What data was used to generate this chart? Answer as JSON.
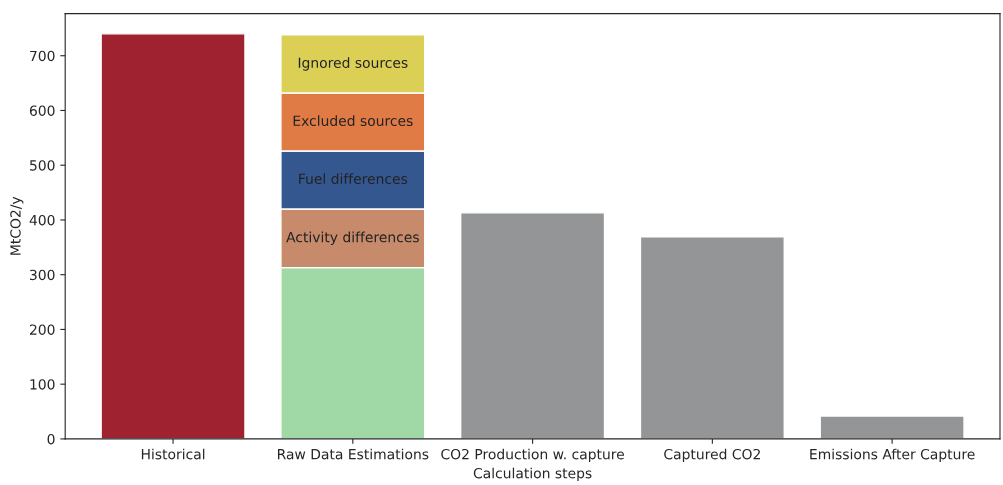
{
  "chart_data": {
    "type": "bar",
    "stacked": true,
    "xlabel": "Calculation steps",
    "ylabel": "MtCO2/y",
    "categories": [
      "Historical",
      "Raw Data Estimations",
      "CO2 Production w. capture",
      "Captured CO2",
      "Emissions After Capture"
    ],
    "series": [
      {
        "colors": [
          "#9e2230",
          "#a0d9a6",
          "#949596",
          "#949596",
          "#949596"
        ],
        "values": [
          740,
          313,
          413,
          369,
          42
        ]
      },
      {
        "name": "Activity differences",
        "color": "#c78a6b",
        "values": [
          null,
          107,
          null,
          null,
          null
        ]
      },
      {
        "name": "Fuel differences",
        "color": "#34578f",
        "values": [
          null,
          106,
          null,
          null,
          null
        ]
      },
      {
        "name": "Excluded sources",
        "color": "#e07b45",
        "values": [
          null,
          106,
          null,
          null,
          null
        ]
      },
      {
        "name": "Ignored sources",
        "color": "#dccf56",
        "values": [
          null,
          106,
          null,
          null,
          null
        ]
      }
    ],
    "ylim": [
      0,
      777
    ],
    "yticks": [
      0,
      100,
      200,
      300,
      400,
      500,
      600,
      700
    ],
    "grid": false
  }
}
